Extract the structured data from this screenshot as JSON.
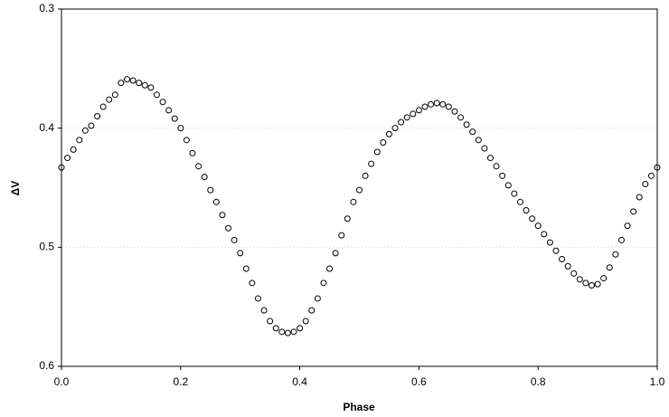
{
  "chart_data": {
    "type": "scatter",
    "x_label": "Phase",
    "y_label": "ΔV",
    "xlim": [
      0,
      1
    ],
    "xticks": [
      {
        "value": 0,
        "label": "0.0"
      },
      0.2,
      0.4,
      0.6,
      0.8,
      {
        "value": 1,
        "label": "1.0"
      }
    ],
    "ylim": [
      0.6,
      0.3
    ],
    "yticks": [
      0.3,
      0.4,
      0.5,
      0.6
    ],
    "grid": true,
    "marker_color": "#000000",
    "series": [
      {
        "name": "ΔV",
        "color": "#000000",
        "x": [
          0.0,
          0.01,
          0.02,
          0.03,
          0.04,
          0.05,
          0.06,
          0.07,
          0.08,
          0.09,
          0.1,
          0.11,
          0.12,
          0.13,
          0.14,
          0.15,
          0.16,
          0.17,
          0.18,
          0.19,
          0.2,
          0.21,
          0.22,
          0.23,
          0.24,
          0.25,
          0.26,
          0.27,
          0.28,
          0.29,
          0.3,
          0.31,
          0.32,
          0.33,
          0.34,
          0.35,
          0.36,
          0.37,
          0.38,
          0.39,
          0.4,
          0.41,
          0.42,
          0.43,
          0.44,
          0.45,
          0.46,
          0.47,
          0.48,
          0.49,
          0.5,
          0.51,
          0.52,
          0.53,
          0.54,
          0.55,
          0.56,
          0.57,
          0.58,
          0.59,
          0.6,
          0.61,
          0.62,
          0.63,
          0.64,
          0.65,
          0.66,
          0.67,
          0.68,
          0.69,
          0.7,
          0.71,
          0.72,
          0.73,
          0.74,
          0.75,
          0.76,
          0.77,
          0.78,
          0.79,
          0.8,
          0.81,
          0.82,
          0.83,
          0.84,
          0.85,
          0.86,
          0.87,
          0.88,
          0.89,
          0.9,
          0.91,
          0.92,
          0.93,
          0.94,
          0.95,
          0.96,
          0.97,
          0.98,
          0.99,
          1.0
        ],
        "values": [
          0.433,
          0.425,
          0.418,
          0.41,
          0.402,
          0.398,
          0.39,
          0.382,
          0.376,
          0.372,
          0.362,
          0.359,
          0.36,
          0.362,
          0.364,
          0.366,
          0.372,
          0.378,
          0.385,
          0.392,
          0.4,
          0.41,
          0.421,
          0.432,
          0.441,
          0.452,
          0.462,
          0.473,
          0.484,
          0.494,
          0.505,
          0.518,
          0.53,
          0.543,
          0.553,
          0.562,
          0.568,
          0.571,
          0.572,
          0.571,
          0.568,
          0.562,
          0.553,
          0.543,
          0.53,
          0.518,
          0.505,
          0.49,
          0.476,
          0.462,
          0.452,
          0.44,
          0.43,
          0.42,
          0.412,
          0.405,
          0.4,
          0.395,
          0.391,
          0.388,
          0.385,
          0.382,
          0.38,
          0.379,
          0.38,
          0.382,
          0.386,
          0.391,
          0.397,
          0.403,
          0.41,
          0.417,
          0.425,
          0.432,
          0.44,
          0.448,
          0.455,
          0.462,
          0.469,
          0.476,
          0.482,
          0.489,
          0.496,
          0.503,
          0.51,
          0.516,
          0.522,
          0.527,
          0.53,
          0.532,
          0.531,
          0.526,
          0.517,
          0.506,
          0.494,
          0.482,
          0.47,
          0.458,
          0.447,
          0.44,
          0.433
        ]
      }
    ]
  }
}
